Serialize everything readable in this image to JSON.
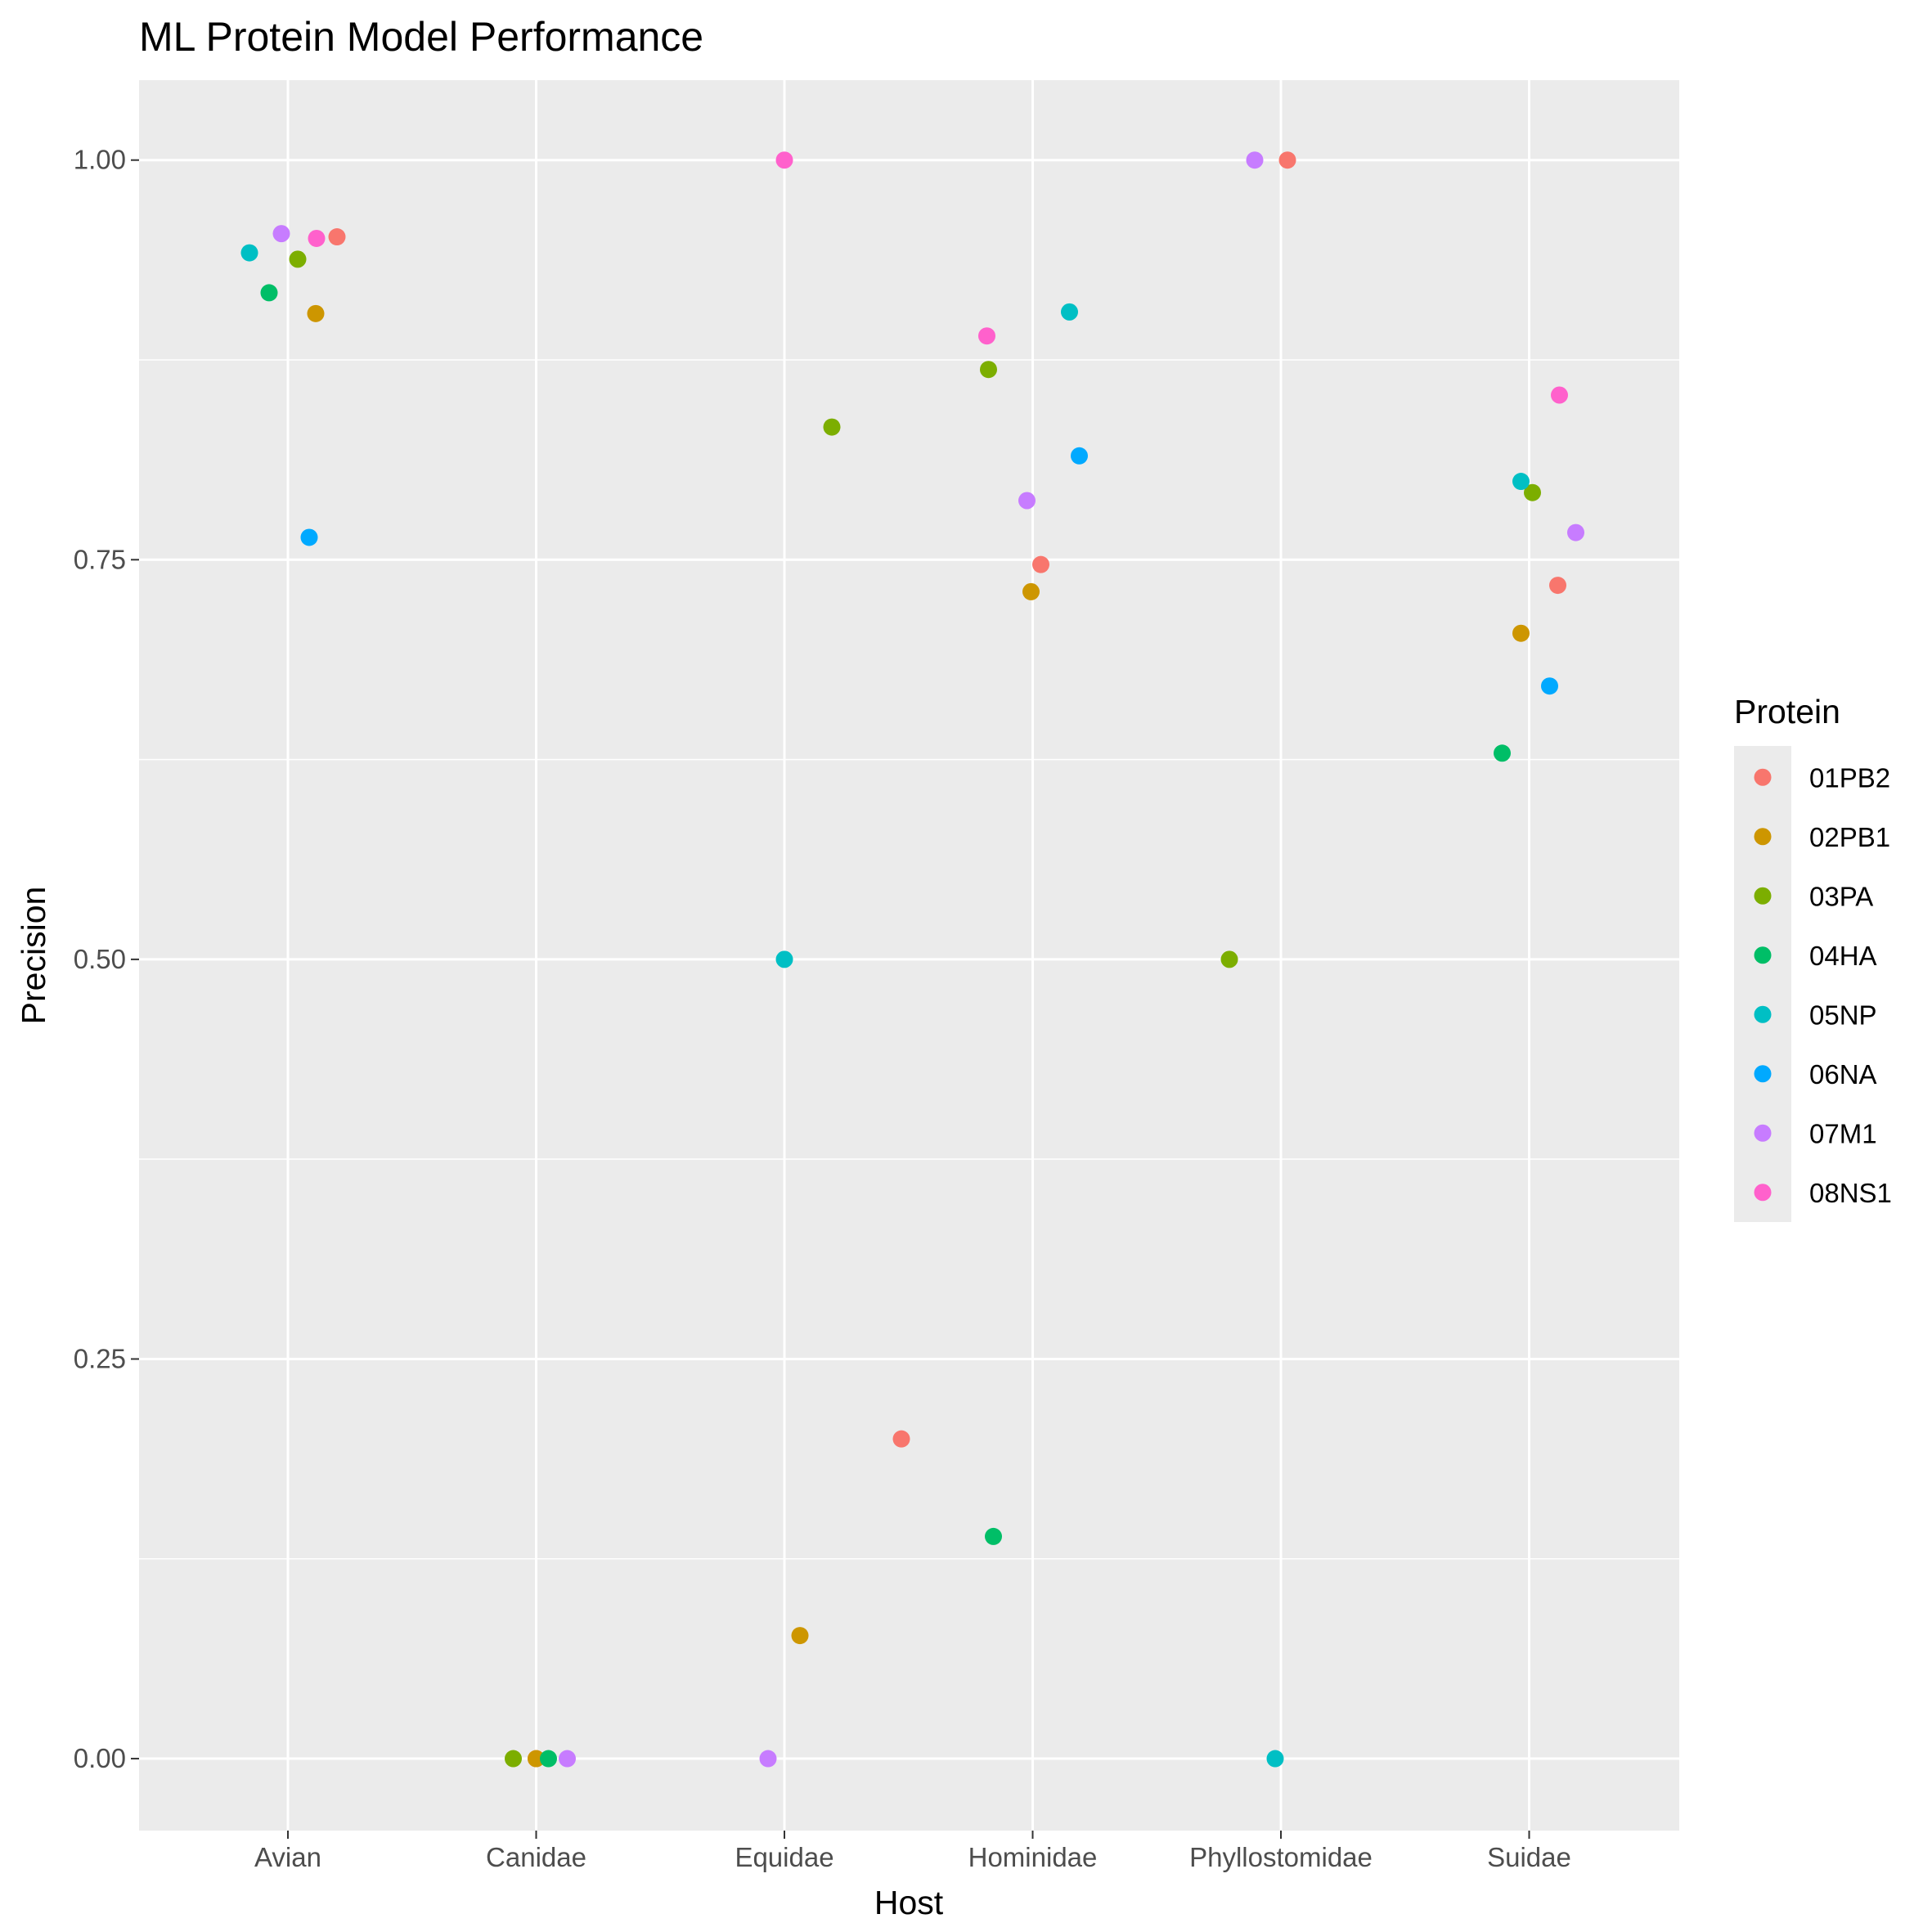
{
  "chart_data": {
    "type": "scatter",
    "title": "ML Protein Model Performance",
    "xlabel": "Host",
    "ylabel": "Precision",
    "categories": [
      "Avian",
      "Canidae",
      "Equidae",
      "Hominidae",
      "Phyllostomidae",
      "Suidae"
    ],
    "ylim": [
      -0.045,
      1.05
    ],
    "yticks": [
      0.0,
      0.25,
      0.5,
      0.75,
      1.0
    ],
    "ytick_labels": [
      "0.00",
      "0.25",
      "0.50",
      "0.75",
      "1.00"
    ],
    "grid": true,
    "legend": {
      "title": "Protein",
      "position": "right"
    },
    "series": [
      {
        "name": "01PB2",
        "color": "#F8766D",
        "points": [
          {
            "x": "Avian",
            "y": 0.952
          },
          {
            "x": "Canidae",
            "y": 0.0
          },
          {
            "x": "Equidae",
            "y": 0.2
          },
          {
            "x": "Hominidae",
            "y": 0.747
          },
          {
            "x": "Phyllostomidae",
            "y": 1.0
          },
          {
            "x": "Suidae",
            "y": 0.734
          }
        ]
      },
      {
        "name": "02PB1",
        "color": "#CD9600",
        "points": [
          {
            "x": "Avian",
            "y": 0.904
          },
          {
            "x": "Canidae",
            "y": 0.0
          },
          {
            "x": "Equidae",
            "y": 0.077
          },
          {
            "x": "Hominidae",
            "y": 0.73
          },
          {
            "x": "Suidae",
            "y": 0.704
          }
        ]
      },
      {
        "name": "03PA",
        "color": "#7CAE00",
        "points": [
          {
            "x": "Avian",
            "y": 0.938
          },
          {
            "x": "Canidae",
            "y": 0.0
          },
          {
            "x": "Equidae",
            "y": 0.833
          },
          {
            "x": "Hominidae",
            "y": 0.869
          },
          {
            "x": "Phyllostomidae",
            "y": 0.5
          },
          {
            "x": "Suidae",
            "y": 0.792
          }
        ]
      },
      {
        "name": "04HA",
        "color": "#00BE67",
        "points": [
          {
            "x": "Avian",
            "y": 0.917
          },
          {
            "x": "Canidae",
            "y": 0.0
          },
          {
            "x": "Hominidae",
            "y": 0.139
          },
          {
            "x": "Suidae",
            "y": 0.629
          }
        ]
      },
      {
        "name": "05NP",
        "color": "#00BFC4",
        "points": [
          {
            "x": "Avian",
            "y": 0.942
          },
          {
            "x": "Equidae",
            "y": 0.5
          },
          {
            "x": "Hominidae",
            "y": 0.905
          },
          {
            "x": "Phyllostomidae",
            "y": 0.0
          },
          {
            "x": "Suidae",
            "y": 0.799
          }
        ]
      },
      {
        "name": "06NA",
        "color": "#00A9FF",
        "points": [
          {
            "x": "Avian",
            "y": 0.764
          },
          {
            "x": "Hominidae",
            "y": 0.815
          },
          {
            "x": "Suidae",
            "y": 0.671
          }
        ]
      },
      {
        "name": "07M1",
        "color": "#C77CFF",
        "points": [
          {
            "x": "Avian",
            "y": 0.954
          },
          {
            "x": "Canidae",
            "y": 0.0
          },
          {
            "x": "Equidae",
            "y": 0.0
          },
          {
            "x": "Hominidae",
            "y": 0.787
          },
          {
            "x": "Phyllostomidae",
            "y": 1.0
          },
          {
            "x": "Suidae",
            "y": 0.767
          }
        ]
      },
      {
        "name": "08NS1",
        "color": "#FF61CC",
        "points": [
          {
            "x": "Avian",
            "y": 0.951
          },
          {
            "x": "Equidae",
            "y": 1.0
          },
          {
            "x": "Hominidae",
            "y": 0.89
          },
          {
            "x": "Suidae",
            "y": 0.853
          }
        ]
      }
    ]
  }
}
